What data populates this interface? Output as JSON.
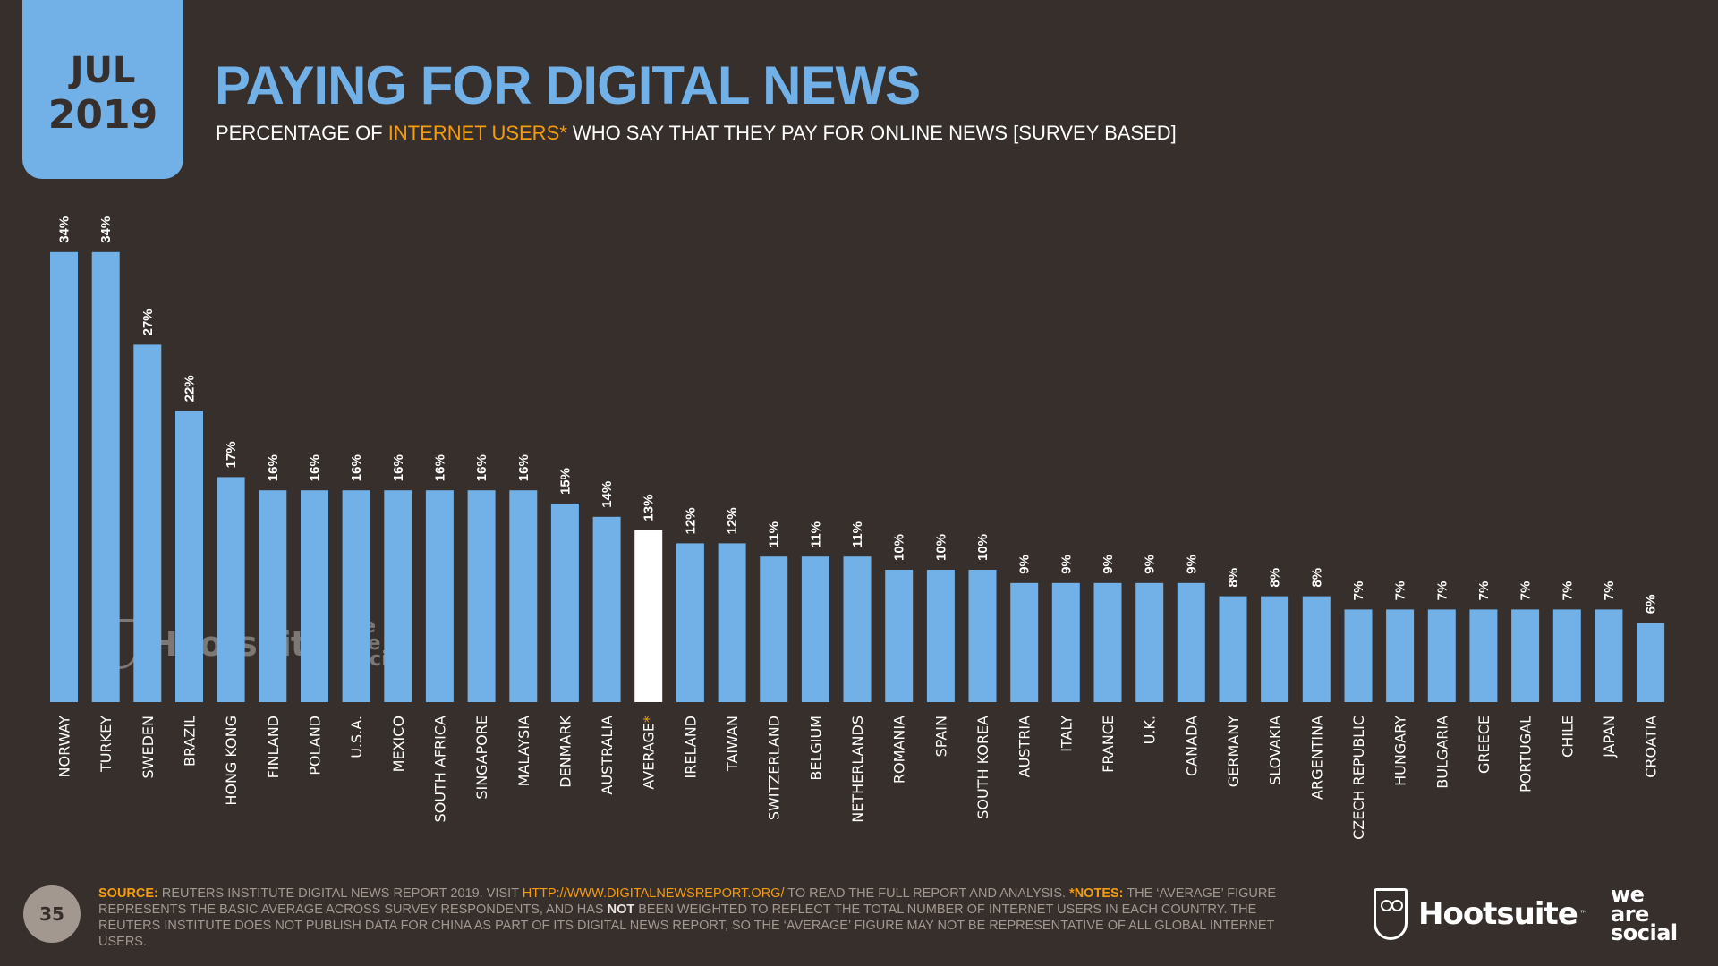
{
  "header": {
    "date_month": "JUL",
    "date_year": "2019",
    "title": "PAYING FOR DIGITAL NEWS",
    "subtitle_pre": "PERCENTAGE OF ",
    "subtitle_highlight": "INTERNET USERS*",
    "subtitle_post": " WHO SAY THAT THEY PAY FOR ONLINE NEWS [SURVEY BASED]"
  },
  "colors": {
    "background": "#362F2B",
    "bar": "#72B0E8",
    "highlight_bar": "#FFFFFF",
    "accent_orange": "#F39C12",
    "muted_text": "#A39890"
  },
  "chart_data": {
    "type": "bar",
    "title": "PAYING FOR DIGITAL NEWS",
    "subtitle": "PERCENTAGE OF INTERNET USERS* WHO SAY THAT THEY PAY FOR ONLINE NEWS [SURVEY BASED]",
    "xlabel": "",
    "ylabel": "",
    "ylim": [
      0,
      34
    ],
    "grid": false,
    "value_suffix": "%",
    "categories": [
      "NORWAY",
      "TURKEY",
      "SWEDEN",
      "BRAZIL",
      "HONG KONG",
      "FINLAND",
      "POLAND",
      "U.S.A.",
      "MEXICO",
      "SOUTH AFRICA",
      "SINGAPORE",
      "MALAYSIA",
      "DENMARK",
      "AUSTRALIA",
      "AVERAGE",
      "IRELAND",
      "TAIWAN",
      "SWITZERLAND",
      "BELGIUM",
      "NETHERLANDS",
      "ROMANIA",
      "SPAIN",
      "SOUTH KOREA",
      "AUSTRIA",
      "ITALY",
      "FRANCE",
      "U.K.",
      "CANADA",
      "GERMANY",
      "SLOVAKIA",
      "ARGENTINA",
      "CZECH REPUBLIC",
      "HUNGARY",
      "BULGARIA",
      "GREECE",
      "PORTUGAL",
      "CHILE",
      "JAPAN",
      "CROATIA"
    ],
    "values": [
      34,
      34,
      27,
      22,
      17,
      16,
      16,
      16,
      16,
      16,
      16,
      16,
      15,
      14,
      13,
      12,
      12,
      11,
      11,
      11,
      10,
      10,
      10,
      9,
      9,
      9,
      9,
      9,
      8,
      8,
      8,
      7,
      7,
      7,
      7,
      7,
      7,
      7,
      6
    ],
    "highlight_category": "AVERAGE",
    "highlight_marker": "*"
  },
  "watermark": {
    "brand": "Hootsuite",
    "tm": "™",
    "partner_lines": [
      "we",
      "are",
      "social"
    ]
  },
  "footer": {
    "page_number": "35",
    "source_label": "SOURCE:",
    "source_text": " REUTERS INSTITUTE DIGITAL NEWS REPORT 2019. VISIT ",
    "source_url": "HTTP://WWW.DIGITALNEWSREPORT.ORG/",
    "source_after": " TO READ THE FULL REPORT AND ANALYSIS. ",
    "notes_label": "*NOTES:",
    "notes_text_1": " THE ‘AVERAGE’ FIGURE REPRESENTS THE BASIC AVERAGE ACROSS SURVEY RESPONDENTS, AND HAS ",
    "notes_bold": "NOT",
    "notes_text_2": " BEEN WEIGHTED TO REFLECT THE TOTAL NUMBER OF INTERNET USERS IN EACH COUNTRY. THE REUTERS INSTITUTE DOES NOT PUBLISH DATA FOR CHINA AS PART OF ITS DIGITAL NEWS REPORT, SO THE ‘AVERAGE’ FIGURE MAY NOT BE REPRESENTATIVE OF ALL GLOBAL INTERNET USERS."
  },
  "logos": {
    "hootsuite": "Hootsuite",
    "hootsuite_tm": "™",
    "wearesocial_lines": [
      "we",
      "are",
      "social"
    ],
    "hootsuite_icon": "owl-icon"
  }
}
